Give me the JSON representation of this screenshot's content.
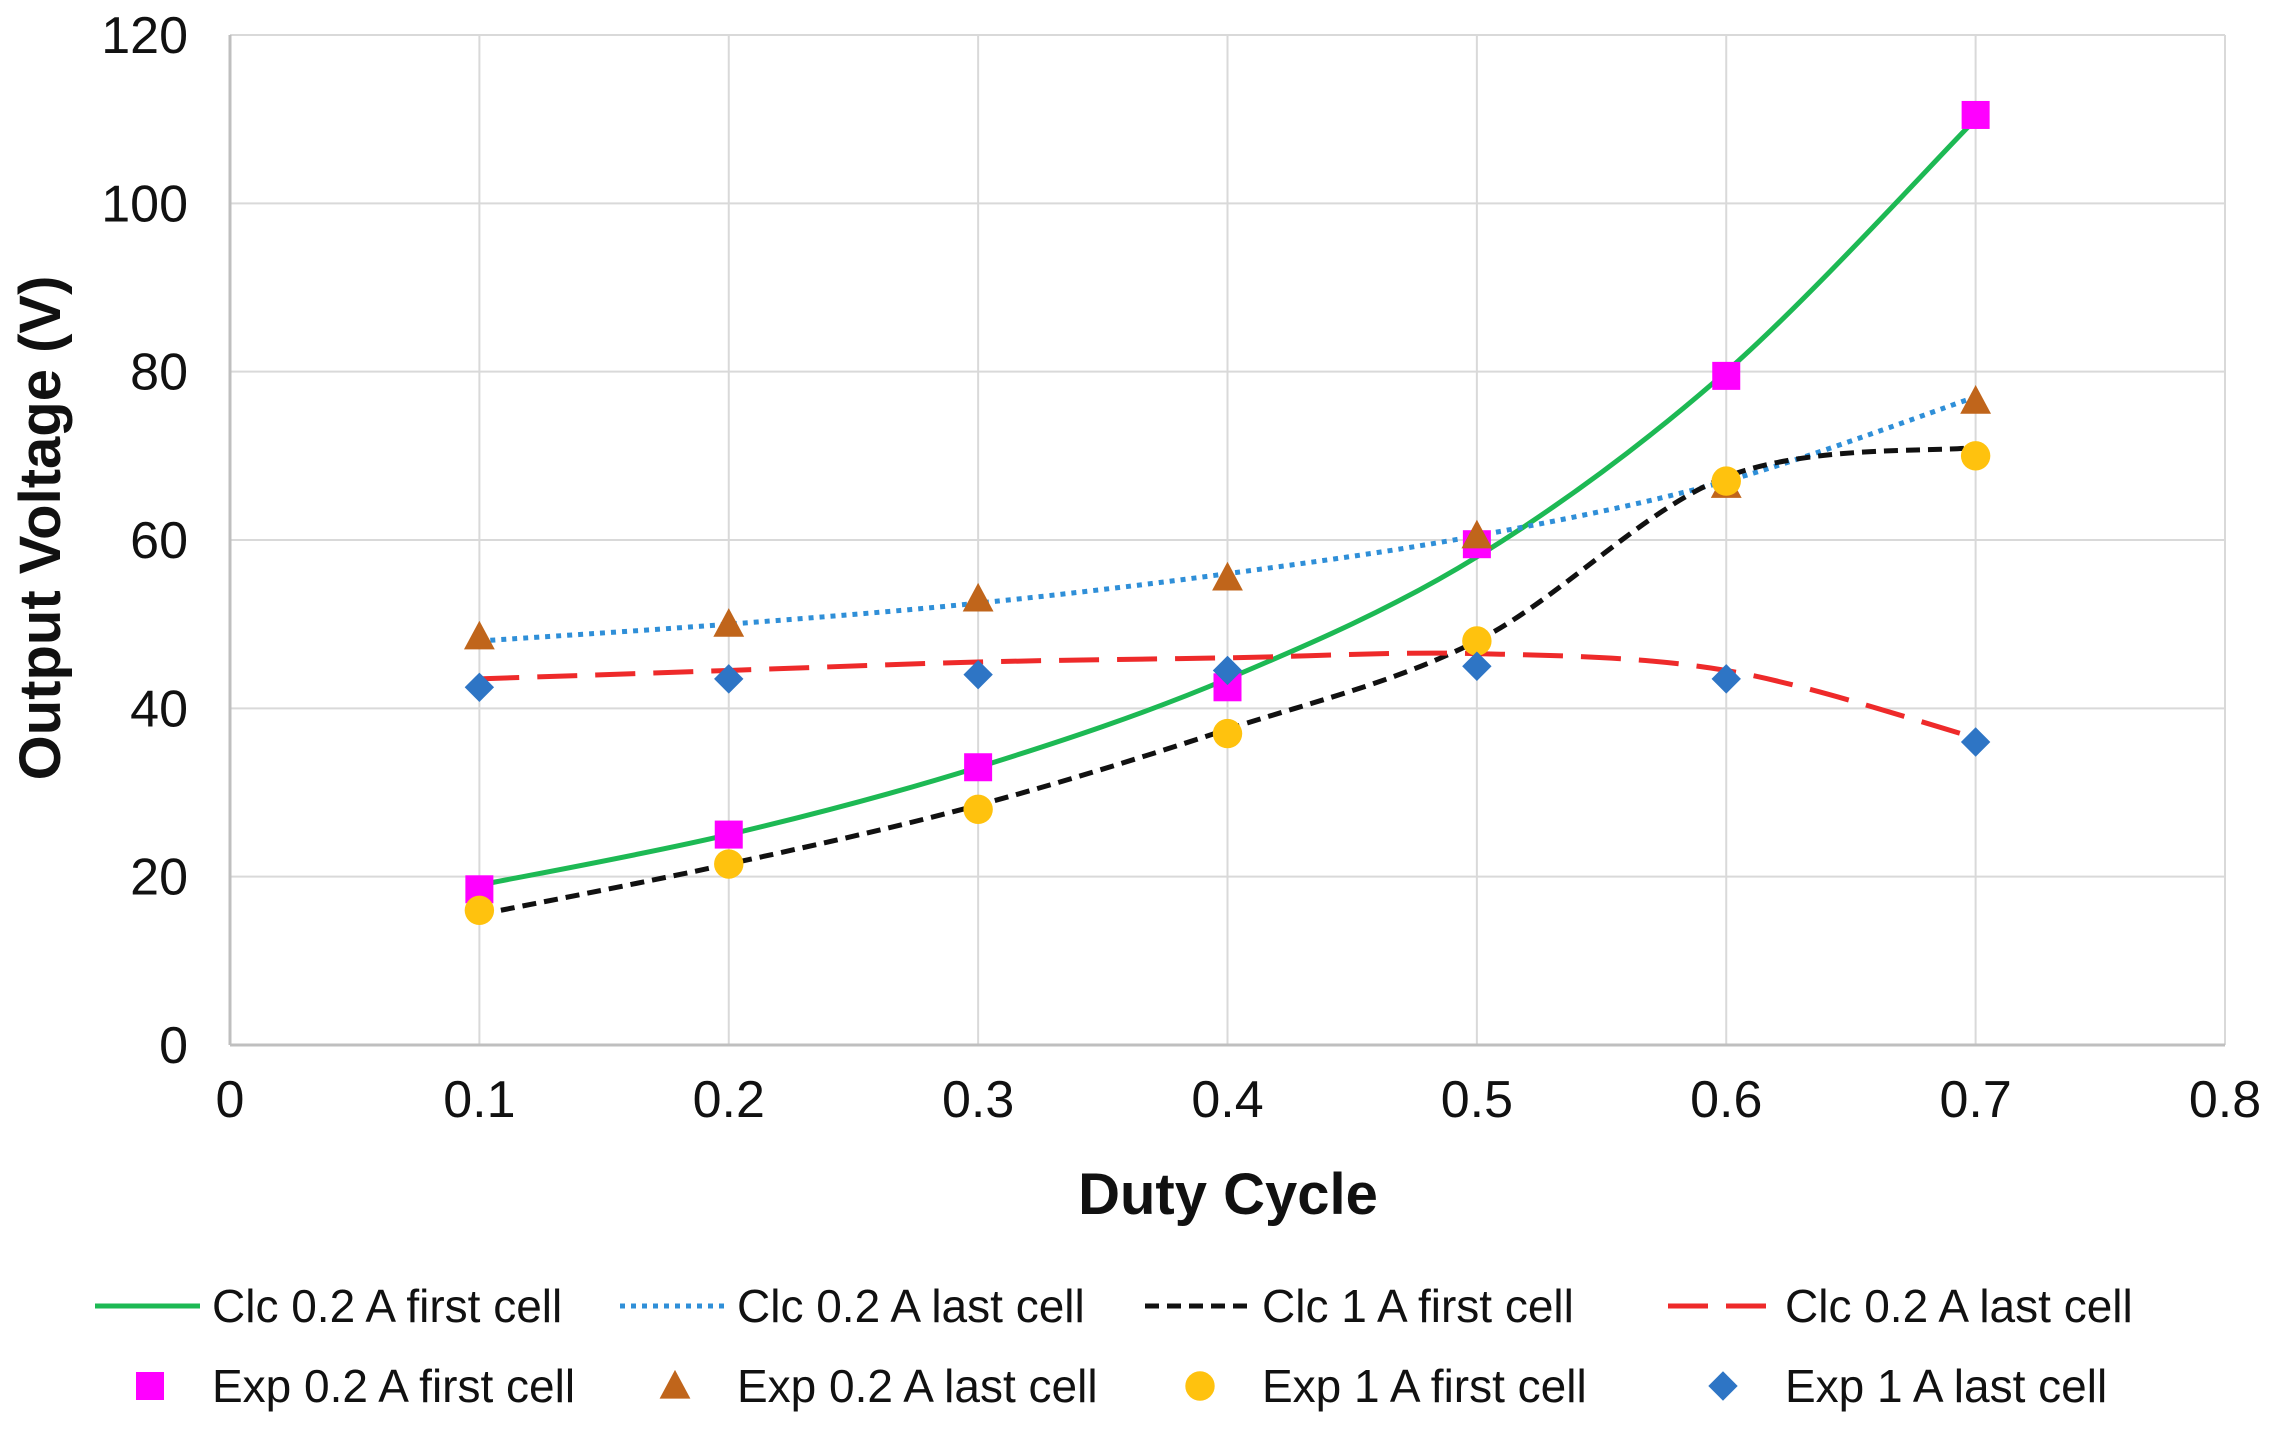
{
  "colors": {
    "grid": "#d9d9d9",
    "axis": "#bfbfbf",
    "clc_first_02": "#1db954",
    "clc_last_02": "#2f8fd8",
    "clc_first_1": "#111111",
    "clc_last_02_red": "#ee2a2a",
    "exp_first_02": "#ff00ff",
    "exp_last_02": "#c0651b",
    "exp_first_1": "#ffc20e",
    "exp_last_1": "#2e75c5"
  },
  "chart_data": {
    "type": "line",
    "title": "",
    "xlabel": "Duty Cycle",
    "ylabel": "Output Voltage (V)",
    "xlim": [
      0,
      0.8
    ],
    "ylim": [
      0,
      120
    ],
    "x_ticks": [
      {
        "value": 0,
        "label": "0"
      },
      {
        "value": 0.1,
        "label": "0.1"
      },
      {
        "value": 0.2,
        "label": "0.2"
      },
      {
        "value": 0.3,
        "label": "0.3"
      },
      {
        "value": 0.4,
        "label": "0.4"
      },
      {
        "value": 0.5,
        "label": "0.5"
      },
      {
        "value": 0.6,
        "label": "0.6"
      },
      {
        "value": 0.7,
        "label": "0.7"
      },
      {
        "value": 0.8,
        "label": "0.8"
      }
    ],
    "y_ticks": [
      {
        "value": 0,
        "label": "0"
      },
      {
        "value": 20,
        "label": "20"
      },
      {
        "value": 40,
        "label": "40"
      },
      {
        "value": 60,
        "label": "60"
      },
      {
        "value": 80,
        "label": "80"
      },
      {
        "value": 100,
        "label": "100"
      },
      {
        "value": 120,
        "label": "120"
      }
    ],
    "grid": true,
    "legend_position": "bottom",
    "series": [
      {
        "id": "clc-02-first",
        "name": "Clc 0.2 A first cell",
        "kind": "line",
        "style": "solid",
        "color_key": "clc_first_02",
        "x": [
          0.1,
          0.2,
          0.3,
          0.4,
          0.5,
          0.6,
          0.7
        ],
        "values": [
          19,
          25,
          33,
          43.5,
          58,
          80,
          110
        ]
      },
      {
        "id": "clc-02-last",
        "name": "Clc 0.2 A last cell",
        "kind": "line",
        "style": "dotted",
        "color_key": "clc_last_02",
        "x": [
          0.1,
          0.2,
          0.3,
          0.4,
          0.5,
          0.6,
          0.7
        ],
        "values": [
          48,
          50,
          52.5,
          56,
          60.5,
          67,
          77
        ]
      },
      {
        "id": "clc-1-first",
        "name": "Clc 1 A first cell",
        "kind": "line",
        "style": "dashed",
        "color_key": "clc_first_1",
        "x": [
          0.1,
          0.2,
          0.3,
          0.4,
          0.5,
          0.6,
          0.7
        ],
        "values": [
          15.5,
          21.5,
          28.5,
          37.5,
          48,
          67.5,
          71
        ]
      },
      {
        "id": "clc-02-last-red",
        "name": "Clc 0.2 A last cell",
        "kind": "line",
        "style": "longdash",
        "color_key": "clc_last_02_red",
        "x": [
          0.1,
          0.2,
          0.3,
          0.4,
          0.5,
          0.6,
          0.7
        ],
        "values": [
          43.5,
          44.5,
          45.5,
          46,
          46.5,
          44.5,
          36.5
        ]
      },
      {
        "id": "exp-02-first",
        "name": "Exp 0.2 A first cell",
        "kind": "marker",
        "marker": "square",
        "color_key": "exp_first_02",
        "x": [
          0.1,
          0.2,
          0.3,
          0.4,
          0.5,
          0.6,
          0.7
        ],
        "values": [
          18.5,
          25,
          33,
          42.5,
          59.5,
          79.5,
          110.5
        ]
      },
      {
        "id": "exp-02-last",
        "name": "Exp 0.2 A last cell",
        "kind": "marker",
        "marker": "triangle",
        "color_key": "exp_last_02",
        "x": [
          0.1,
          0.2,
          0.3,
          0.4,
          0.5,
          0.6,
          0.7
        ],
        "values": [
          48.5,
          50,
          53,
          55.5,
          60.5,
          66.5,
          76.5
        ]
      },
      {
        "id": "exp-1-first",
        "name": "Exp 1 A first cell",
        "kind": "marker",
        "marker": "circle",
        "color_key": "exp_first_1",
        "x": [
          0.1,
          0.2,
          0.3,
          0.4,
          0.5,
          0.6,
          0.7
        ],
        "values": [
          16,
          21.5,
          28,
          37,
          48,
          67,
          70
        ]
      },
      {
        "id": "exp-1-last",
        "name": "Exp 1 A last cell",
        "kind": "marker",
        "marker": "diamond",
        "color_key": "exp_last_1",
        "x": [
          0.1,
          0.2,
          0.3,
          0.4,
          0.5,
          0.6,
          0.7
        ],
        "values": [
          42.5,
          43.5,
          44,
          44.5,
          45,
          43.5,
          36
        ]
      }
    ]
  }
}
